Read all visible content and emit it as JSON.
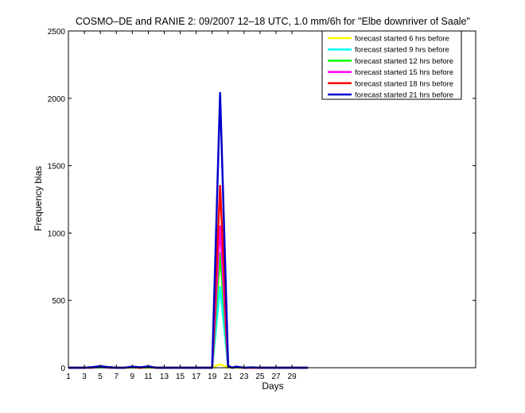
{
  "chart_data": {
    "type": "line",
    "title": "COSMO–DE and RANIE 2: 09/2007 12–18 UTC, 1.0 mm/6h for \"Elbe downriver of Saale\"",
    "xlabel": "Days",
    "ylabel": "Frequency bias",
    "xlim": [
      1,
      52
    ],
    "ylim": [
      0,
      2500
    ],
    "xticks": [
      1,
      3,
      5,
      7,
      9,
      11,
      13,
      15,
      17,
      19,
      21,
      23,
      25,
      27,
      29
    ],
    "yticks": [
      0,
      500,
      1000,
      1500,
      2000,
      2500
    ],
    "legend_position": "top-right",
    "grid": false,
    "series": [
      {
        "name": "forecast started 6 hrs before",
        "color": "#ffff00",
        "x": [
          1,
          2,
          3,
          4,
          5,
          6,
          7,
          8,
          9,
          10,
          11,
          12,
          13,
          14,
          15,
          16,
          17,
          18,
          19,
          19.5,
          20,
          20.5,
          21,
          21.5,
          22,
          23,
          24,
          25,
          26,
          27,
          28,
          29,
          30,
          31
        ],
        "y": [
          0,
          0,
          0,
          0,
          3,
          0,
          0,
          0,
          0,
          0,
          0,
          0,
          0,
          0,
          0,
          0,
          0,
          0,
          0,
          15,
          25,
          15,
          0,
          0,
          0,
          0,
          0,
          0,
          0,
          0,
          0,
          0,
          0,
          0
        ]
      },
      {
        "name": "forecast started 9 hrs before",
        "color": "#00ffff",
        "x": [
          1,
          2,
          3,
          4,
          5,
          6,
          7,
          8,
          9,
          10,
          11,
          12,
          13,
          14,
          15,
          16,
          17,
          18,
          19,
          19.5,
          20,
          20.5,
          21,
          21.5,
          22,
          23,
          24,
          25,
          26,
          27,
          28,
          29,
          30,
          31
        ],
        "y": [
          0,
          0,
          0,
          0,
          5,
          0,
          0,
          0,
          3,
          0,
          4,
          0,
          0,
          0,
          0,
          0,
          0,
          0,
          0,
          300,
          600,
          300,
          5,
          0,
          3,
          0,
          0,
          0,
          0,
          0,
          0,
          0,
          0,
          0
        ]
      },
      {
        "name": "forecast started 12 hrs before",
        "color": "#00ff00",
        "x": [
          1,
          2,
          3,
          4,
          5,
          6,
          7,
          8,
          9,
          10,
          11,
          12,
          13,
          14,
          15,
          16,
          17,
          18,
          19,
          19.5,
          20,
          20.5,
          21,
          21.5,
          22,
          23,
          24,
          25,
          26,
          27,
          28,
          29,
          30,
          31
        ],
        "y": [
          0,
          0,
          0,
          0,
          6,
          0,
          0,
          0,
          4,
          0,
          5,
          0,
          0,
          0,
          0,
          0,
          0,
          0,
          0,
          420,
          850,
          420,
          8,
          0,
          4,
          0,
          0,
          0,
          0,
          0,
          0,
          0,
          0,
          0
        ]
      },
      {
        "name": "forecast started 15 hrs before",
        "color": "#ff00ff",
        "x": [
          1,
          2,
          3,
          4,
          5,
          6,
          7,
          8,
          9,
          10,
          11,
          12,
          13,
          14,
          15,
          16,
          17,
          18,
          19,
          19.5,
          20,
          20.5,
          21,
          21.5,
          22,
          23,
          24,
          25,
          26,
          27,
          28,
          29,
          30,
          31
        ],
        "y": [
          0,
          0,
          0,
          0,
          8,
          0,
          0,
          0,
          5,
          0,
          6,
          0,
          0,
          0,
          0,
          0,
          0,
          0,
          0,
          520,
          1050,
          520,
          10,
          0,
          5,
          0,
          0,
          0,
          0,
          0,
          0,
          0,
          0,
          0
        ]
      },
      {
        "name": "forecast started 18 hrs before",
        "color": "#ff0000",
        "x": [
          1,
          2,
          3,
          4,
          5,
          6,
          7,
          8,
          9,
          10,
          11,
          12,
          13,
          14,
          15,
          16,
          17,
          18,
          19,
          19.5,
          20,
          20.5,
          21,
          21.5,
          22,
          23,
          24,
          25,
          26,
          27,
          28,
          29,
          30,
          31
        ],
        "y": [
          0,
          0,
          0,
          3,
          10,
          4,
          0,
          0,
          6,
          0,
          8,
          0,
          0,
          0,
          0,
          0,
          0,
          0,
          0,
          680,
          1350,
          680,
          12,
          0,
          6,
          0,
          0,
          0,
          0,
          0,
          0,
          0,
          0,
          0
        ]
      },
      {
        "name": "forecast started 21 hrs before",
        "color": "#0000cc",
        "x": [
          1,
          2,
          3,
          4,
          5,
          6,
          7,
          8,
          9,
          10,
          11,
          12,
          13,
          14,
          15,
          16,
          17,
          18,
          19,
          19.5,
          20,
          20.5,
          21,
          21.5,
          22,
          23,
          24,
          25,
          26,
          27,
          28,
          29,
          30,
          31
        ],
        "y": [
          0,
          0,
          0,
          4,
          12,
          5,
          0,
          0,
          8,
          3,
          10,
          0,
          0,
          0,
          0,
          0,
          0,
          0,
          0,
          1020,
          2040,
          1020,
          15,
          0,
          8,
          0,
          3,
          0,
          0,
          0,
          0,
          0,
          0,
          0
        ]
      }
    ]
  }
}
